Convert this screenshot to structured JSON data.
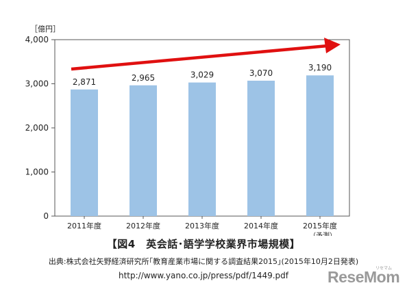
{
  "chart_data": {
    "type": "bar",
    "unit_label": "［億円］",
    "categories": [
      "2011年度",
      "2012年度",
      "2013年度",
      "2014年度",
      "2015年度"
    ],
    "category_notes": [
      "",
      "",
      "",
      "",
      "（予測）"
    ],
    "values": [
      2871,
      2965,
      3029,
      3070,
      3190
    ],
    "value_labels": [
      "2,871",
      "2,965",
      "3,029",
      "3,070",
      "3,190"
    ],
    "ylim": [
      0,
      4000
    ],
    "yticks": [
      0,
      1000,
      2000,
      3000,
      4000
    ],
    "ytick_labels": [
      "0",
      "1,000",
      "2,000",
      "3,000",
      "4,000"
    ],
    "grid": false,
    "bar_color": "#9dc3e6",
    "trend_arrow_color": "#e01010"
  },
  "caption": {
    "title": "【図4　英会話･語学学校業界市場規模】",
    "source": "出典:株式会社矢野経済研究所｢教育産業市場に関する調査結果2015｣(2015年10月2日発表)",
    "url": "http://www.yano.co.jp/press/pdf/1449.pdf"
  },
  "watermark": {
    "logo": "ReseMom",
    "kana": "リセマム"
  }
}
